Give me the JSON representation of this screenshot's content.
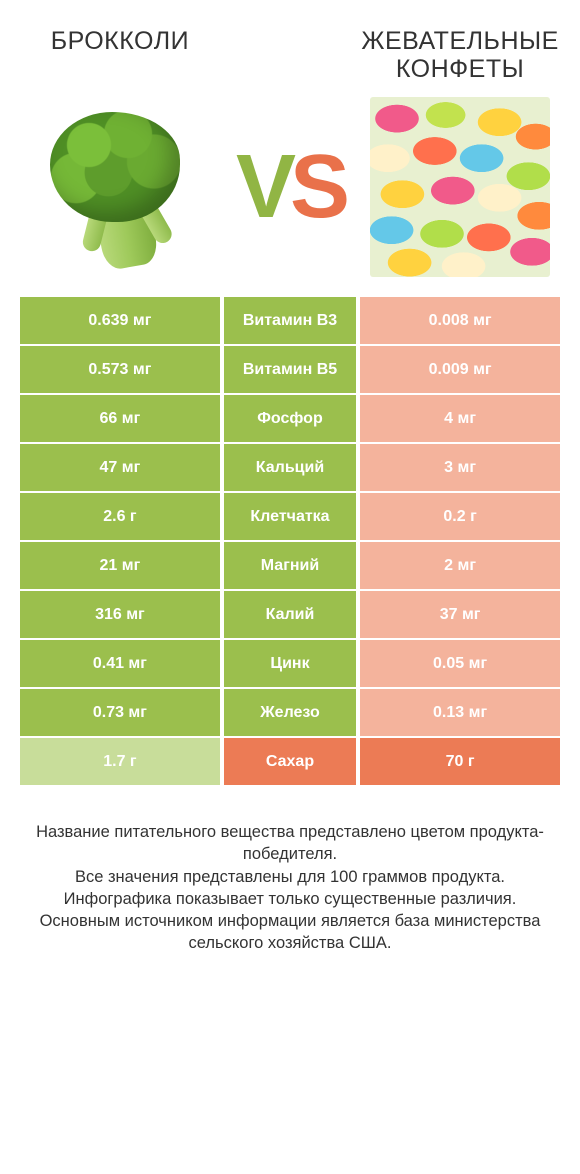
{
  "colors": {
    "left_win": "#9bbf4d",
    "left_lose": "#c8dd9a",
    "mid_left": "#9bbf4d",
    "mid_right": "#ec7b55",
    "right_win": "#ec7b55",
    "right_lose": "#f4b39c",
    "text_win": "#ffffff",
    "text_lose": "#ffffff"
  },
  "header": {
    "left_title": "БРОККОЛИ",
    "right_title": "ЖЕВАТЕЛЬНЫЕ КОНФЕТЫ",
    "vs_v": "V",
    "vs_s": "S"
  },
  "rows": [
    {
      "label": "Витамин B3",
      "left": "0.639 мг",
      "right": "0.008 мг",
      "winner": "left"
    },
    {
      "label": "Витамин B5",
      "left": "0.573 мг",
      "right": "0.009 мг",
      "winner": "left"
    },
    {
      "label": "Фосфор",
      "left": "66 мг",
      "right": "4 мг",
      "winner": "left"
    },
    {
      "label": "Кальций",
      "left": "47 мг",
      "right": "3 мг",
      "winner": "left"
    },
    {
      "label": "Клетчатка",
      "left": "2.6 г",
      "right": "0.2 г",
      "winner": "left"
    },
    {
      "label": "Магний",
      "left": "21 мг",
      "right": "2 мг",
      "winner": "left"
    },
    {
      "label": "Калий",
      "left": "316 мг",
      "right": "37 мг",
      "winner": "left"
    },
    {
      "label": "Цинк",
      "left": "0.41 мг",
      "right": "0.05 мг",
      "winner": "left"
    },
    {
      "label": "Железо",
      "left": "0.73 мг",
      "right": "0.13 мг",
      "winner": "left"
    },
    {
      "label": "Сахар",
      "left": "1.7 г",
      "right": "70 г",
      "winner": "right"
    }
  ],
  "footer": {
    "l1": "Название питательного вещества представлено цветом продукта-победителя.",
    "l2": "Все значения представлены для 100 граммов продукта.",
    "l3": "Инфографика показывает только существенные различия.",
    "l4": "Основным источником информации является база министерства сельского хозяйства США."
  }
}
